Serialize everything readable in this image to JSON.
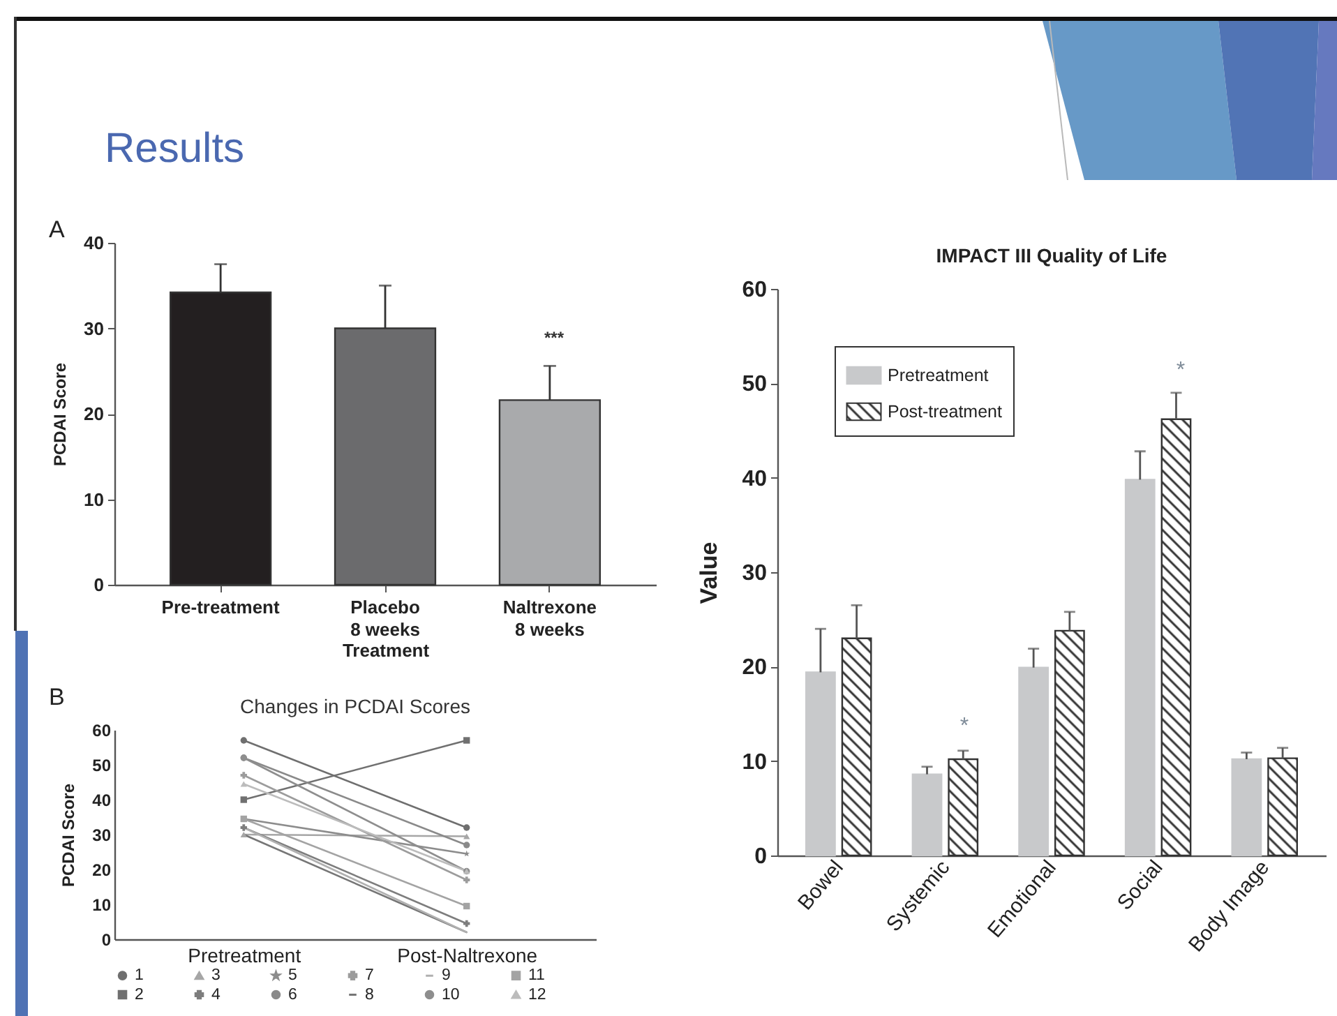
{
  "chart_data": [
    {
      "type": "bar",
      "title": "Results",
      "annotations": [
        "A",
        "***"
      ],
      "categories": [
        "Pre-treatment",
        "Placebo\n8 weeks",
        "Naltrexone\n8 weeks"
      ],
      "values": [
        34.2,
        30.0,
        21.6
      ],
      "colors": [
        "#231f20",
        "#6b6b6d",
        "#a9aaac"
      ],
      "errors": [
        [
          34.2,
          37.5
        ],
        [
          30.0,
          35.0
        ],
        [
          21.6,
          25.6
        ]
      ],
      "xlabel": "Treatment",
      "ylabel": "PCDAI Score",
      "ylim": [
        0,
        40
      ],
      "yticks": [
        0,
        10,
        20,
        30,
        40
      ]
    },
    {
      "type": "line",
      "title": "Changes in PCDAI Scores",
      "annotations": [
        "B"
      ],
      "ylabel": "PCDAI Score",
      "categories": [
        "Pretreatment",
        "Post-Naltrexone"
      ],
      "series": [
        {
          "name": "1",
          "color": "#6f6f6f",
          "marker": "circle",
          "values": [
            57,
            32
          ]
        },
        {
          "name": "2",
          "color": "#707070",
          "marker": "square",
          "values": [
            40,
            57
          ]
        },
        {
          "name": "3",
          "color": "#a6a6a6",
          "marker": "triangle",
          "values": [
            30,
            29.5
          ]
        },
        {
          "name": "4",
          "color": "#7d7d7d",
          "marker": "cross",
          "values": [
            32,
            4.5
          ]
        },
        {
          "name": "5",
          "color": "#8c8c8c",
          "marker": "star",
          "values": [
            34.5,
            24.5
          ]
        },
        {
          "name": "6",
          "color": "#8a8a8a",
          "marker": "circle",
          "values": [
            52,
            27
          ]
        },
        {
          "name": "7",
          "color": "#9c9c9c",
          "marker": "cross",
          "values": [
            47,
            17
          ]
        },
        {
          "name": "8",
          "color": "#767676",
          "marker": "none",
          "values": [
            30,
            2
          ]
        },
        {
          "name": "9",
          "color": "#b0b0b0",
          "marker": "none",
          "values": [
            32,
            2
          ]
        },
        {
          "name": "10",
          "color": "#8e8e8e",
          "marker": "circle",
          "values": [
            52,
            19.5
          ]
        },
        {
          "name": "11",
          "color": "#a3a3a3",
          "marker": "square",
          "values": [
            34.5,
            9.5
          ]
        },
        {
          "name": "12",
          "color": "#bcbcbc",
          "marker": "triangle",
          "values": [
            44.5,
            19.5
          ]
        }
      ],
      "ylim": [
        0,
        60
      ],
      "yticks": [
        0,
        10,
        20,
        30,
        40,
        50,
        60
      ],
      "legend": "bottom"
    },
    {
      "type": "bar",
      "title": "IMPACT III Quality of Life",
      "ylabel": "Value",
      "categories": [
        "Bowel",
        "Systemic",
        "Emotional",
        "Social",
        "Body Image"
      ],
      "series": [
        {
          "name": "Pretreatment",
          "color": "#c8c9cb",
          "values": [
            19.4,
            8.6,
            19.9,
            39.8,
            10.2
          ],
          "errors": [
            [
              19.4,
              24.0
            ],
            [
              8.6,
              9.4
            ],
            [
              19.9,
              21.9
            ],
            [
              39.8,
              42.8
            ],
            [
              10.2,
              10.9
            ]
          ]
        },
        {
          "name": "Post-treatment",
          "color": "#333333",
          "values": [
            23.0,
            10.2,
            23.8,
            46.2,
            10.3
          ],
          "errors": [
            [
              23.0,
              26.5
            ],
            [
              10.2,
              11.1
            ],
            [
              23.8,
              25.8
            ],
            [
              46.2,
              49.0
            ],
            [
              10.3,
              11.4
            ]
          ]
        }
      ],
      "ylim": [
        0,
        60
      ],
      "yticks": [
        0,
        10,
        20,
        30,
        40,
        50,
        60
      ],
      "legend": "top left",
      "annotations": [
        "*",
        "*"
      ]
    }
  ]
}
